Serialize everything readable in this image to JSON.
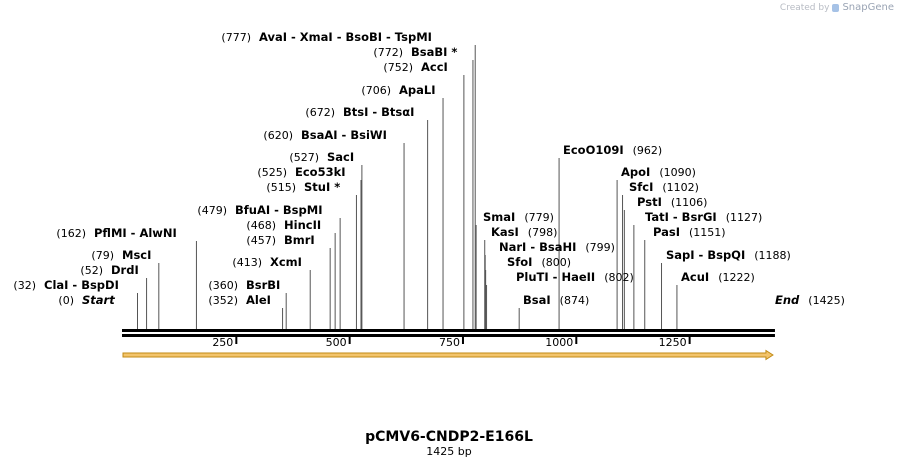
{
  "credit": {
    "prefix": "Created by",
    "brand": "SnapGene"
  },
  "plasmid": {
    "name": "pCMV6-CNDP2-E166L",
    "length_label": "1425 bp",
    "length": 1425
  },
  "colors": {
    "feature_arrow": "#f3c46b",
    "feature_arrow_edge": "#c08a14",
    "backbone": "#000000"
  },
  "ruler": {
    "ticks": [
      250,
      500,
      750,
      1000,
      1250
    ]
  },
  "feature": {
    "name": "feature arrow",
    "start": 1,
    "end": 1425,
    "direction": "forward"
  },
  "sites": [
    {
      "pos": 0,
      "pos_label": "(0)",
      "names": [
        "Start"
      ],
      "special": true
    },
    {
      "pos": 32,
      "pos_label": "(32)",
      "names": [
        "ClaI",
        "BspDI"
      ]
    },
    {
      "pos": 52,
      "pos_label": "(52)",
      "names": [
        "DrdI"
      ]
    },
    {
      "pos": 79,
      "pos_label": "(79)",
      "names": [
        "MscI"
      ]
    },
    {
      "pos": 162,
      "pos_label": "(162)",
      "names": [
        "PflMI",
        "AlwNI"
      ]
    },
    {
      "pos": 352,
      "pos_label": "(352)",
      "names": [
        "AleI"
      ]
    },
    {
      "pos": 360,
      "pos_label": "(360)",
      "names": [
        "BsrBI"
      ]
    },
    {
      "pos": 413,
      "pos_label": "(413)",
      "names": [
        "XcmI"
      ]
    },
    {
      "pos": 457,
      "pos_label": "(457)",
      "names": [
        "BmrI"
      ]
    },
    {
      "pos": 468,
      "pos_label": "(468)",
      "names": [
        "HincII"
      ]
    },
    {
      "pos": 479,
      "pos_label": "(479)",
      "names": [
        "BfuAI",
        "BspMI"
      ]
    },
    {
      "pos": 515,
      "pos_label": "(515)",
      "names": [
        "StuI *"
      ]
    },
    {
      "pos": 525,
      "pos_label": "(525)",
      "names": [
        "Eco53kI"
      ]
    },
    {
      "pos": 527,
      "pos_label": "(527)",
      "names": [
        "SacI"
      ]
    },
    {
      "pos": 620,
      "pos_label": "(620)",
      "names": [
        "BsaAI",
        "BsiWI"
      ]
    },
    {
      "pos": 672,
      "pos_label": "(672)",
      "names": [
        "BtsI",
        "BtsαI"
      ]
    },
    {
      "pos": 706,
      "pos_label": "(706)",
      "names": [
        "ApaLI"
      ]
    },
    {
      "pos": 752,
      "pos_label": "(752)",
      "names": [
        "AccI"
      ]
    },
    {
      "pos": 772,
      "pos_label": "(772)",
      "names": [
        "BsaBI *"
      ]
    },
    {
      "pos": 777,
      "pos_label": "(777)",
      "names": [
        "AvaI",
        "XmaI",
        "BsoBI",
        "TspMI"
      ]
    },
    {
      "pos": 779,
      "pos_label": "(779)",
      "names": [
        "SmaI"
      ]
    },
    {
      "pos": 798,
      "pos_label": "(798)",
      "names": [
        "KasI"
      ]
    },
    {
      "pos": 799,
      "pos_label": "(799)",
      "names": [
        "NarI",
        "BsaHI"
      ]
    },
    {
      "pos": 800,
      "pos_label": "(800)",
      "names": [
        "SfoI"
      ]
    },
    {
      "pos": 802,
      "pos_label": "(802)",
      "names": [
        "PluTI",
        "HaeII"
      ]
    },
    {
      "pos": 874,
      "pos_label": "(874)",
      "names": [
        "BsaI"
      ]
    },
    {
      "pos": 962,
      "pos_label": "(962)",
      "names": [
        "EcoO109I"
      ]
    },
    {
      "pos": 1090,
      "pos_label": "(1090)",
      "names": [
        "ApoI"
      ]
    },
    {
      "pos": 1102,
      "pos_label": "(1102)",
      "names": [
        "SfcI"
      ]
    },
    {
      "pos": 1106,
      "pos_label": "(1106)",
      "names": [
        "PstI"
      ]
    },
    {
      "pos": 1127,
      "pos_label": "(1127)",
      "names": [
        "TatI",
        "BsrGI"
      ]
    },
    {
      "pos": 1151,
      "pos_label": "(1151)",
      "names": [
        "PasI"
      ]
    },
    {
      "pos": 1188,
      "pos_label": "(1188)",
      "names": [
        "SapI",
        "BspQI"
      ]
    },
    {
      "pos": 1222,
      "pos_label": "(1222)",
      "names": [
        "AcuI"
      ]
    },
    {
      "pos": 1425,
      "pos_label": "(1425)",
      "names": [
        "End"
      ],
      "special": true
    }
  ]
}
